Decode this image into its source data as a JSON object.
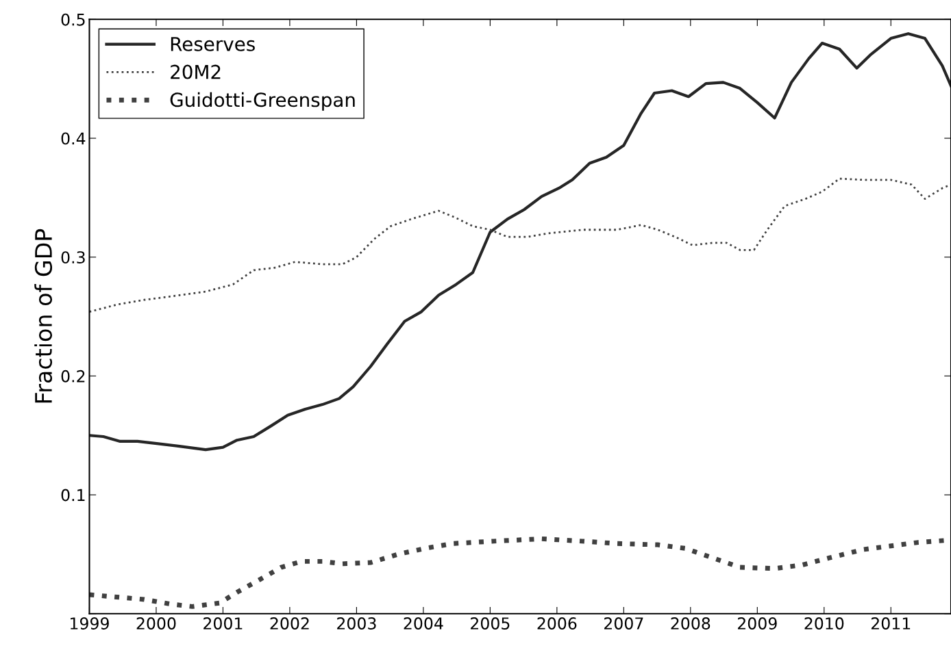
{
  "chart_data": {
    "type": "line",
    "ylabel": "Fraction of GDP",
    "xlim": [
      1999,
      2011.9
    ],
    "ylim": [
      0,
      0.5
    ],
    "xticks": [
      1999,
      2000,
      2001,
      2002,
      2003,
      2004,
      2005,
      2006,
      2007,
      2008,
      2009,
      2010,
      2011
    ],
    "yticks": [
      {
        "value": 0,
        "label": null
      },
      0.1,
      0.2,
      0.3,
      0.4,
      0.5
    ],
    "grid": false,
    "legend": "top left",
    "series": [
      {
        "name": "Reserves",
        "color": "#262626",
        "line_style": "solid",
        "x": [
          1999.0,
          1999.21,
          1999.46,
          1999.72,
          2000.03,
          2000.33,
          2000.74,
          2001.0,
          2001.21,
          2001.46,
          2001.72,
          2001.97,
          2002.23,
          2002.49,
          2002.74,
          2002.95,
          2003.21,
          2003.46,
          2003.72,
          2003.97,
          2004.23,
          2004.49,
          2004.74,
          2005.0,
          2005.26,
          2005.51,
          2005.77,
          2006.03,
          2006.23,
          2006.49,
          2006.74,
          2007.0,
          2007.26,
          2007.46,
          2007.72,
          2007.97,
          2008.23,
          2008.49,
          2008.74,
          2009.0,
          2009.26,
          2009.51,
          2009.77,
          2009.97,
          2010.23,
          2010.49,
          2010.69,
          2011.0,
          2011.26,
          2011.51,
          2011.77,
          2011.9
        ],
        "values": [
          0.15,
          0.149,
          0.145,
          0.145,
          0.143,
          0.141,
          0.138,
          0.14,
          0.146,
          0.149,
          0.158,
          0.167,
          0.172,
          0.176,
          0.181,
          0.191,
          0.208,
          0.227,
          0.246,
          0.254,
          0.268,
          0.277,
          0.287,
          0.321,
          0.332,
          0.34,
          0.351,
          0.358,
          0.365,
          0.379,
          0.384,
          0.394,
          0.421,
          0.438,
          0.44,
          0.435,
          0.446,
          0.447,
          0.442,
          0.43,
          0.417,
          0.447,
          0.467,
          0.48,
          0.475,
          0.459,
          0.47,
          0.484,
          0.488,
          0.484,
          0.461,
          0.444
        ]
      },
      {
        "name": "20M2",
        "color": "#404040",
        "line_style": "dotted",
        "x": [
          1999.0,
          1999.41,
          1999.82,
          2000.23,
          2000.74,
          2001.15,
          2001.46,
          2001.77,
          2002.08,
          2002.49,
          2002.79,
          2003.0,
          2003.26,
          2003.51,
          2003.82,
          2004.23,
          2004.49,
          2004.74,
          2005.0,
          2005.26,
          2005.56,
          2005.87,
          2006.38,
          2006.9,
          2007.26,
          2007.51,
          2007.77,
          2008.03,
          2008.33,
          2008.54,
          2008.74,
          2008.95,
          2009.15,
          2009.41,
          2009.72,
          2009.97,
          2010.23,
          2010.59,
          2011.0,
          2011.31,
          2011.51,
          2011.77,
          2011.9
        ],
        "values": [
          0.254,
          0.26,
          0.264,
          0.267,
          0.271,
          0.277,
          0.289,
          0.291,
          0.296,
          0.294,
          0.294,
          0.3,
          0.315,
          0.326,
          0.332,
          0.339,
          0.333,
          0.326,
          0.323,
          0.317,
          0.317,
          0.32,
          0.323,
          0.323,
          0.327,
          0.323,
          0.317,
          0.31,
          0.312,
          0.312,
          0.306,
          0.306,
          0.323,
          0.343,
          0.349,
          0.355,
          0.366,
          0.365,
          0.365,
          0.361,
          0.349,
          0.358,
          0.361
        ]
      },
      {
        "name": "Guidotti-Greenspan",
        "color": "#404040",
        "line_style": "dotted",
        "x": [
          1999.0,
          1999.41,
          1999.82,
          2000.23,
          2000.54,
          2000.95,
          2001.21,
          2001.56,
          2001.87,
          2002.18,
          2002.49,
          2002.79,
          2003.21,
          2003.62,
          2004.03,
          2004.44,
          2005.05,
          2005.77,
          2006.38,
          2006.9,
          2007.51,
          2007.92,
          2008.33,
          2008.74,
          2009.26,
          2009.67,
          2010.08,
          2010.59,
          2011.0,
          2011.41,
          2011.9
        ],
        "values": [
          0.016,
          0.014,
          0.012,
          0.008,
          0.006,
          0.009,
          0.018,
          0.029,
          0.039,
          0.044,
          0.044,
          0.042,
          0.043,
          0.05,
          0.055,
          0.059,
          0.061,
          0.063,
          0.061,
          0.059,
          0.058,
          0.055,
          0.047,
          0.039,
          0.038,
          0.041,
          0.047,
          0.054,
          0.057,
          0.06,
          0.062
        ]
      }
    ]
  }
}
